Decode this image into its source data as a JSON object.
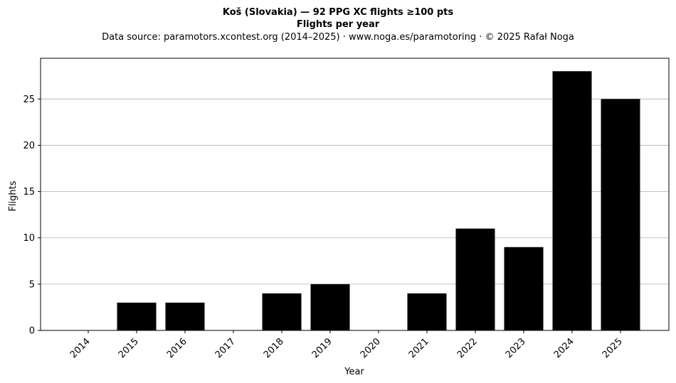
{
  "chart_data": {
    "type": "bar",
    "title": "Koš (Slovakia)  —  92 PPG XC flights ≥100 pts",
    "subtitle": "Flights per year",
    "source_note": "Data source: paramotors.xcontest.org (2014–2025)  ·  www.noga.es/paramotoring  ·  © 2025 Rafał Noga",
    "xlabel": "Year",
    "ylabel": "Flights",
    "categories": [
      "2014",
      "2015",
      "2016",
      "2017",
      "2018",
      "2019",
      "2020",
      "2021",
      "2022",
      "2023",
      "2024",
      "2025"
    ],
    "values": [
      0,
      3,
      3,
      0,
      4,
      5,
      0,
      4,
      11,
      9,
      28,
      25
    ],
    "ylim": [
      0,
      29.4
    ],
    "yticks": [
      0,
      5,
      10,
      15,
      20,
      25
    ],
    "grid": "y",
    "bar_color": "#000000",
    "grid_color": "#b0b0b0"
  }
}
